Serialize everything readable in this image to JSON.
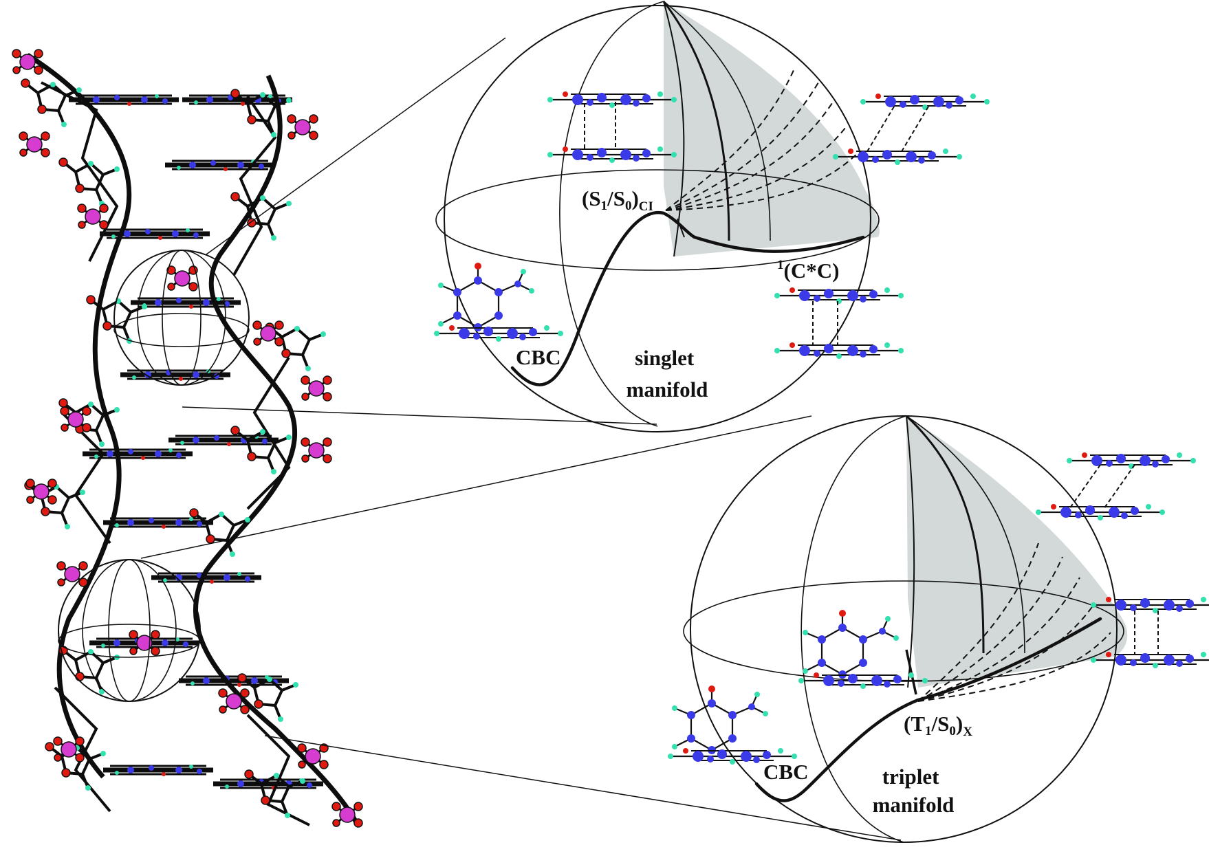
{
  "colors": {
    "background": "#ffffff",
    "line": "#111111",
    "shaded_region": "#d2d9d8",
    "carbon_atom": "#3a3ae8",
    "hydrogen_atom": "#33e0b0",
    "oxygen_atom": "#e01a10",
    "phosphorus_atom": "#d63ccf",
    "backbone": "#0d0d0d"
  },
  "singlet_panel": {
    "ci_label": {
      "main_1": "(S",
      "sub_1": "1",
      "mid": "/S",
      "sub_2": "0",
      "close": ")",
      "sub_3": "CI"
    },
    "dimer_label": {
      "sup": "1",
      "main": "(C*C)"
    },
    "cbc_label": "CBC",
    "manifold_label": [
      "singlet",
      "manifold"
    ]
  },
  "triplet_panel": {
    "x_label": {
      "main_1": "(T",
      "sub_1": "1",
      "mid": "/S",
      "sub_2": "0",
      "close": ")",
      "sub_3": "X"
    },
    "cbc_label": "CBC",
    "manifold_label": [
      "triplet",
      "manifold"
    ]
  }
}
